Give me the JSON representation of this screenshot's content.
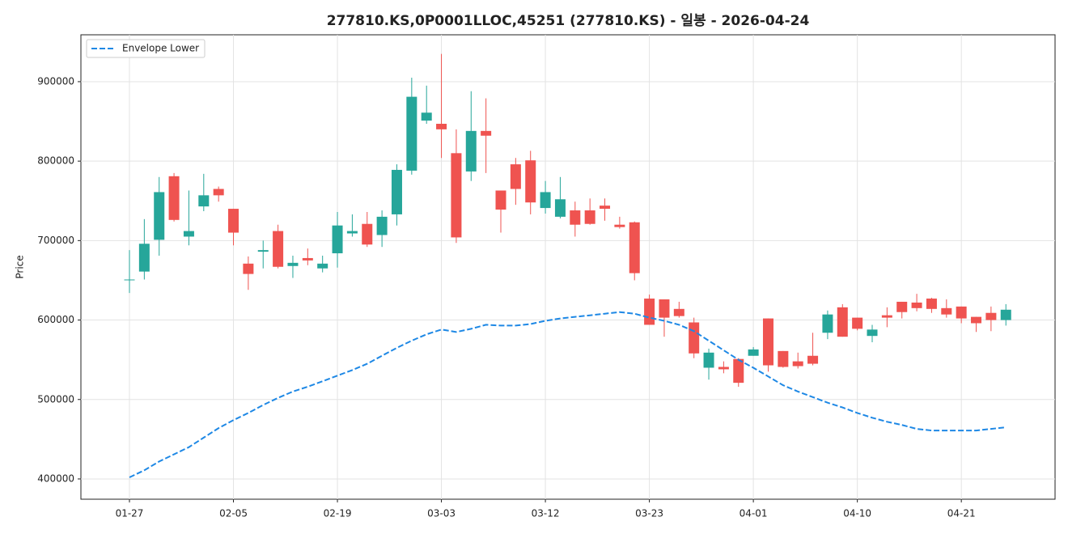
{
  "chart_data": {
    "type": "candlestick",
    "title": "277810.KS,0P0001LLOC,45251 (277810.KS) - 일봉 - 2026-04-24",
    "y_label": "Price",
    "categories": [
      "01-27",
      null,
      null,
      null,
      null,
      null,
      null,
      "02-05",
      null,
      null,
      null,
      null,
      null,
      null,
      "02-19",
      null,
      null,
      null,
      null,
      null,
      null,
      "03-03",
      null,
      null,
      null,
      null,
      null,
      null,
      "03-12",
      null,
      null,
      null,
      null,
      null,
      null,
      "03-23",
      null,
      null,
      null,
      null,
      null,
      null,
      "04-01",
      null,
      null,
      null,
      null,
      null,
      null,
      "04-10",
      null,
      null,
      null,
      null,
      null,
      null,
      "04-21",
      null,
      null,
      null
    ],
    "open": [
      650000,
      661000,
      701000,
      781000,
      705000,
      743000,
      765000,
      740000,
      671000,
      686000,
      712000,
      668000,
      678000,
      665000,
      684000,
      709000,
      721000,
      707000,
      733000,
      788000,
      851000,
      847000,
      810000,
      787000,
      838000,
      763000,
      796000,
      801000,
      741000,
      730000,
      738000,
      738000,
      744000,
      720000,
      723000,
      627000,
      626000,
      614000,
      597000,
      540000,
      541000,
      551000,
      555000,
      602000,
      561000,
      548000,
      555000,
      584000,
      616000,
      603000,
      580000,
      606000,
      623000,
      622000,
      627000,
      615000,
      617000,
      604000,
      609000,
      600000
    ],
    "high": [
      688000,
      727000,
      780000,
      785000,
      763000,
      784000,
      768000,
      740000,
      680000,
      700000,
      720000,
      681000,
      690000,
      681000,
      736000,
      733000,
      736000,
      738000,
      796000,
      905000,
      895000,
      935000,
      840000,
      888000,
      879000,
      763000,
      804000,
      813000,
      775000,
      780000,
      749000,
      753000,
      753000,
      730000,
      724000,
      632000,
      626000,
      623000,
      603000,
      564000,
      548000,
      552000,
      566000,
      602000,
      561000,
      559000,
      584000,
      612000,
      620000,
      603000,
      594000,
      616000,
      623000,
      633000,
      628000,
      626000,
      617000,
      604000,
      617000,
      620000
    ],
    "low": [
      634000,
      651000,
      681000,
      724000,
      694000,
      737000,
      749000,
      694000,
      638000,
      665000,
      665000,
      653000,
      669000,
      660000,
      666000,
      705000,
      692000,
      692000,
      719000,
      783000,
      847000,
      804000,
      697000,
      775000,
      785000,
      710000,
      745000,
      733000,
      734000,
      728000,
      705000,
      720000,
      725000,
      715000,
      650000,
      594000,
      579000,
      603000,
      552000,
      525000,
      533000,
      516000,
      555000,
      535000,
      540000,
      539000,
      543000,
      576000,
      579000,
      587000,
      572000,
      591000,
      602000,
      611000,
      609000,
      603000,
      596000,
      585000,
      586000,
      593000
    ],
    "close": [
      651000,
      696000,
      761000,
      726000,
      712000,
      757000,
      757000,
      710000,
      658000,
      688000,
      667000,
      672000,
      675000,
      671000,
      719000,
      712000,
      695000,
      730000,
      789000,
      881000,
      861000,
      840000,
      704000,
      838000,
      832000,
      739000,
      765000,
      748000,
      761000,
      752000,
      720000,
      721000,
      740000,
      717000,
      659000,
      594000,
      603000,
      605000,
      558000,
      559000,
      538000,
      521000,
      563000,
      543000,
      541000,
      542000,
      545000,
      607000,
      579000,
      589000,
      588000,
      603000,
      610000,
      615000,
      614000,
      607000,
      602000,
      596000,
      600000,
      613000
    ],
    "up_color": "#26a69a",
    "down_color": "#ef5350",
    "series": [
      {
        "name": "Envelope Lower",
        "color": "#1e88e5",
        "line_style": "dashed",
        "values": [
          402000,
          411000,
          422000,
          431000,
          440000,
          452000,
          464000,
          474000,
          483000,
          493000,
          502000,
          510000,
          516000,
          523000,
          530000,
          537000,
          545000,
          555000,
          565000,
          574000,
          582000,
          588000,
          585000,
          589000,
          594000,
          593000,
          593000,
          595000,
          599000,
          602000,
          604000,
          606000,
          608000,
          610000,
          608000,
          603000,
          599000,
          594000,
          586000,
          574000,
          562000,
          550000,
          540000,
          529000,
          518000,
          510000,
          503000,
          496000,
          490000,
          483000,
          477000,
          472000,
          468000,
          463000,
          461000,
          461000,
          461000,
          461000,
          463000,
          465000
        ]
      }
    ],
    "ylim": [
      374500,
      959000
    ],
    "yticks": [
      400000,
      500000,
      600000,
      700000,
      800000,
      900000
    ],
    "grid": true,
    "legend": "upper left"
  }
}
